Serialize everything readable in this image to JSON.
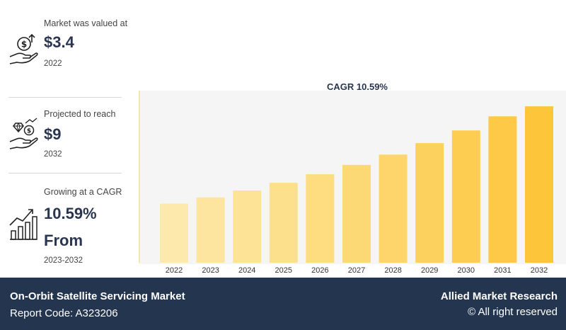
{
  "stats": [
    {
      "label": "Market was valued at",
      "value": "$3.4",
      "year": "2022",
      "icon": "money-hand-icon"
    },
    {
      "label": "Projected to reach",
      "value": "$9",
      "year": "2032",
      "icon": "diamond-coin-hand-icon"
    },
    {
      "label": "Growing at a CAGR",
      "value": "10.59%",
      "value2": "From",
      "year": "2023-2032",
      "icon": "growth-chart-icon"
    }
  ],
  "chart_data": {
    "type": "bar",
    "title": "CAGR 10.59%",
    "categories": [
      "2022",
      "2023",
      "2024",
      "2025",
      "2026",
      "2027",
      "2028",
      "2029",
      "2030",
      "2031",
      "2032"
    ],
    "values": [
      3.4,
      3.76,
      4.16,
      4.6,
      5.09,
      5.63,
      6.22,
      6.88,
      7.61,
      8.42,
      9.0
    ],
    "xlabel": "",
    "ylabel": "",
    "ylim": [
      0,
      9.9
    ],
    "colors": [
      "#fde9ab",
      "#fde5a0",
      "#fde396",
      "#fde08b",
      "#fddd80",
      "#fdd975",
      "#fdd56a",
      "#fdd15e",
      "#fdcd52",
      "#fdc946",
      "#fdc53a"
    ]
  },
  "footer": {
    "title": "On-Orbit Satellite Servicing Market",
    "report_code": "Report Code: A323206",
    "brand": "Allied Market Research",
    "rights": "© All right reserved"
  }
}
